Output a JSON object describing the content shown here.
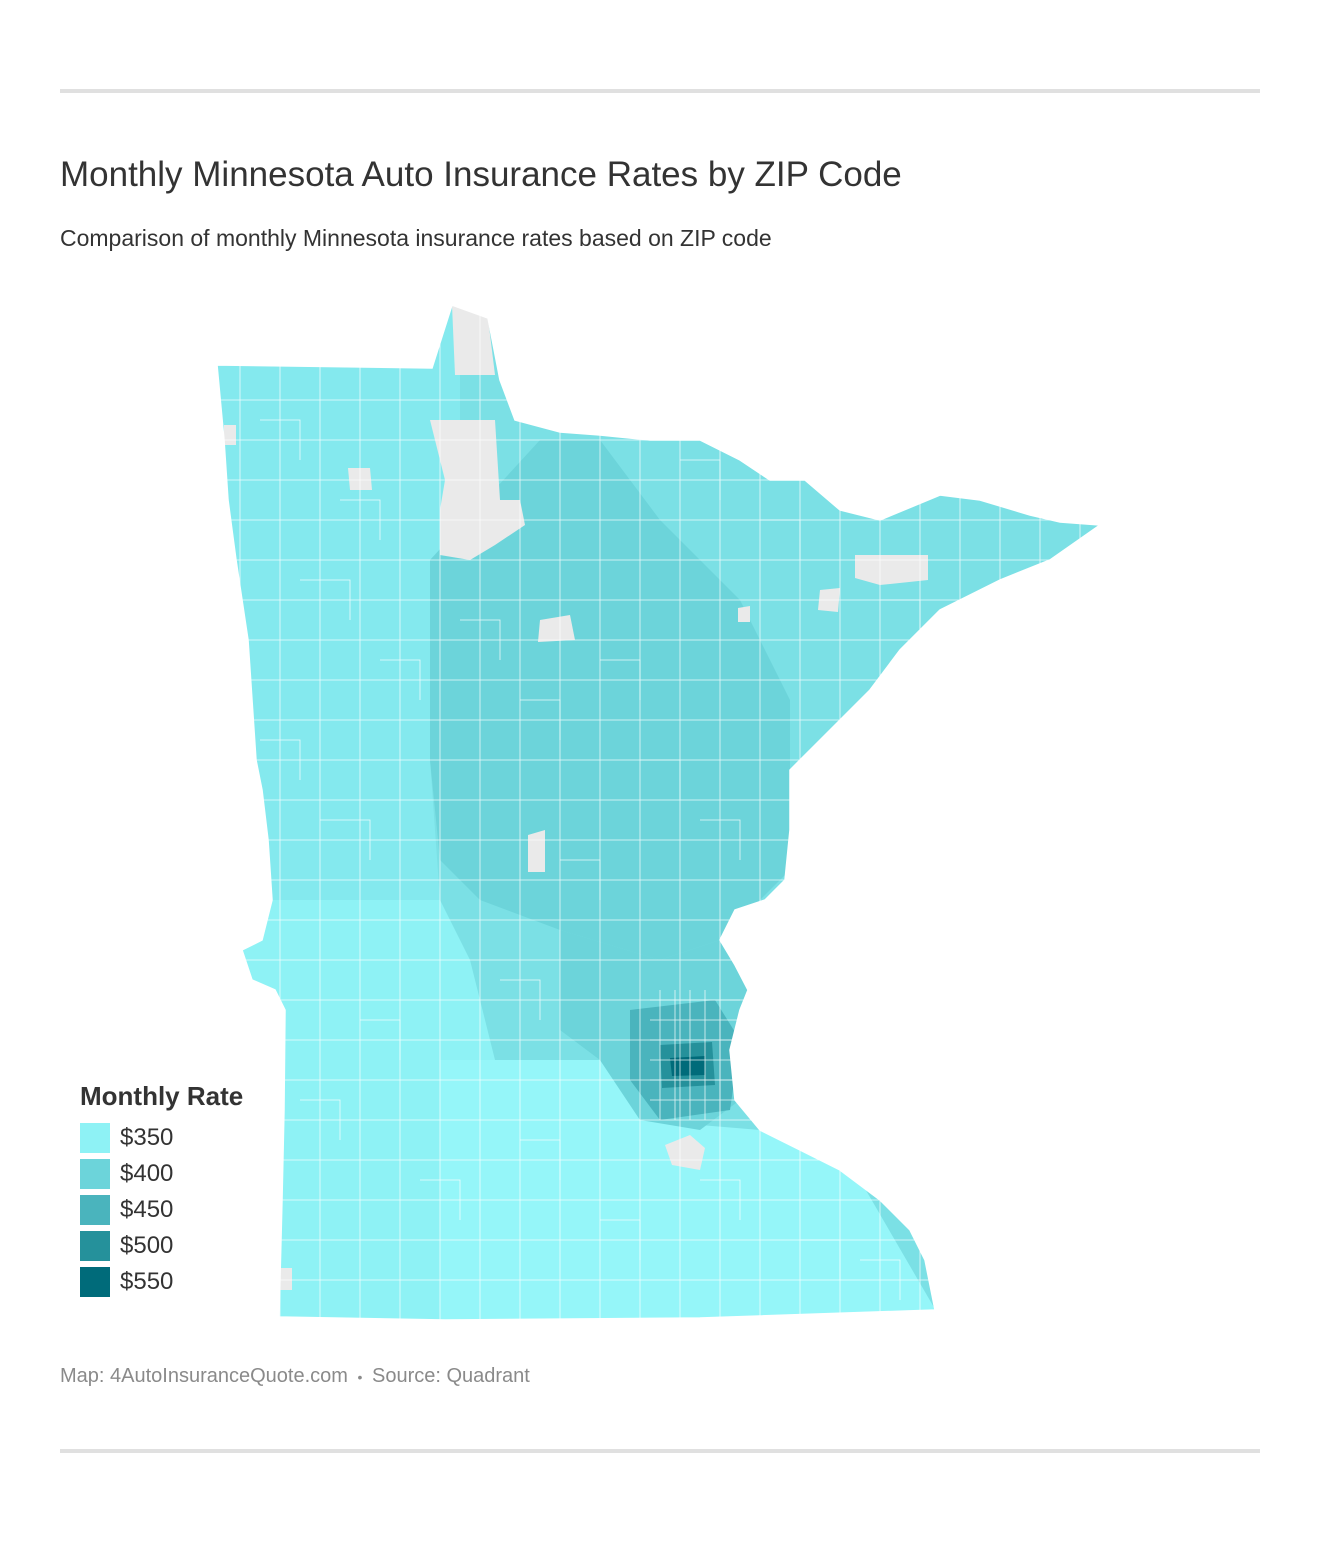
{
  "header": {
    "title": "Monthly Minnesota Auto Insurance Rates by ZIP Code",
    "subtitle": "Comparison of monthly Minnesota insurance rates based on ZIP code"
  },
  "legend": {
    "title": "Monthly Rate",
    "items": [
      {
        "label": "$350",
        "color": "#8ef2f5"
      },
      {
        "label": "$400",
        "color": "#6cd4da"
      },
      {
        "label": "$450",
        "color": "#4ab4bd"
      },
      {
        "label": "$500",
        "color": "#25919b"
      },
      {
        "label": "$550",
        "color": "#006b7a"
      }
    ]
  },
  "map": {
    "no_data_color": "#eaeaea",
    "region_colors": {
      "north": "#7be0e5",
      "northwest": "#84e9ee",
      "central": "#6cd4da",
      "west": "#8ef2f5",
      "south": "#95f6f9",
      "metro_suburbs": "#4ab4bd",
      "metro_inner": "#25919b",
      "metro_core": "#006b7a"
    }
  },
  "footer": {
    "map_credit": "Map: 4AutoInsuranceQuote.com",
    "separator": "•",
    "source": "Source: Quadrant"
  }
}
